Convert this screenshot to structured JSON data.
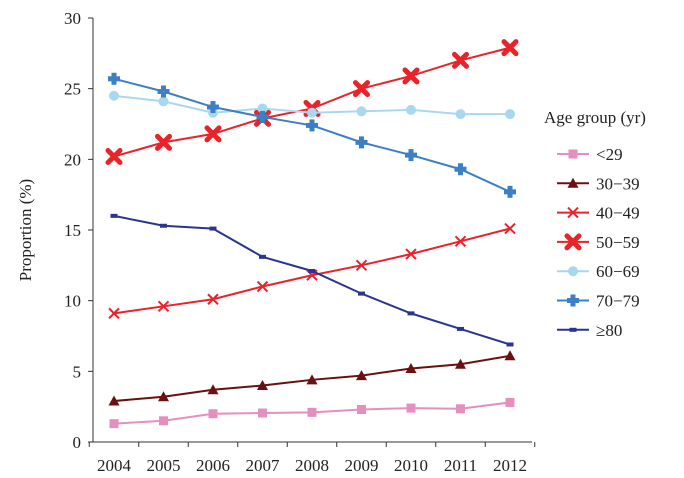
{
  "chart_data": {
    "type": "line",
    "xlabel": "",
    "ylabel": "Proportion (%)",
    "ylim": [
      0,
      30
    ],
    "yticks": [
      0,
      5,
      10,
      15,
      20,
      25,
      30
    ],
    "x": [
      "2004",
      "2005",
      "2006",
      "2007",
      "2008",
      "2009",
      "2010",
      "2011",
      "2012"
    ],
    "grid": false,
    "legend": {
      "title": "Age group (yr)",
      "placement": "right"
    },
    "series": [
      {
        "name": "<29",
        "color": "#e58fbf",
        "marker": "square",
        "values": [
          1.3,
          1.5,
          2.0,
          2.05,
          2.1,
          2.3,
          2.4,
          2.35,
          2.8
        ]
      },
      {
        "name": "30−39",
        "color": "#6b1010",
        "marker": "triangle",
        "values": [
          2.9,
          3.2,
          3.7,
          4.0,
          4.4,
          4.7,
          5.2,
          5.5,
          6.1
        ]
      },
      {
        "name": "40−49",
        "color": "#e8232a",
        "marker": "x",
        "values": [
          9.1,
          9.6,
          10.1,
          11.0,
          11.8,
          12.5,
          13.3,
          14.2,
          15.1
        ]
      },
      {
        "name": "50−59",
        "color": "#e8232a",
        "marker": "bigx",
        "values": [
          20.2,
          21.2,
          21.8,
          22.9,
          23.6,
          25.0,
          25.9,
          27.0,
          27.9
        ]
      },
      {
        "name": "60−69",
        "color": "#a8d8f0",
        "marker": "circle",
        "values": [
          24.5,
          24.1,
          23.3,
          23.6,
          23.3,
          23.4,
          23.5,
          23.2,
          23.2
        ]
      },
      {
        "name": "70−79",
        "color": "#3d7fc4",
        "marker": "plus",
        "values": [
          25.7,
          24.8,
          23.7,
          23.0,
          22.4,
          21.2,
          20.3,
          19.3,
          17.7
        ]
      },
      {
        "name": "≥80",
        "color": "#2b3590",
        "marker": "dash",
        "values": [
          16.0,
          15.3,
          15.1,
          13.1,
          12.1,
          10.5,
          9.1,
          8.0,
          6.9
        ]
      }
    ]
  }
}
